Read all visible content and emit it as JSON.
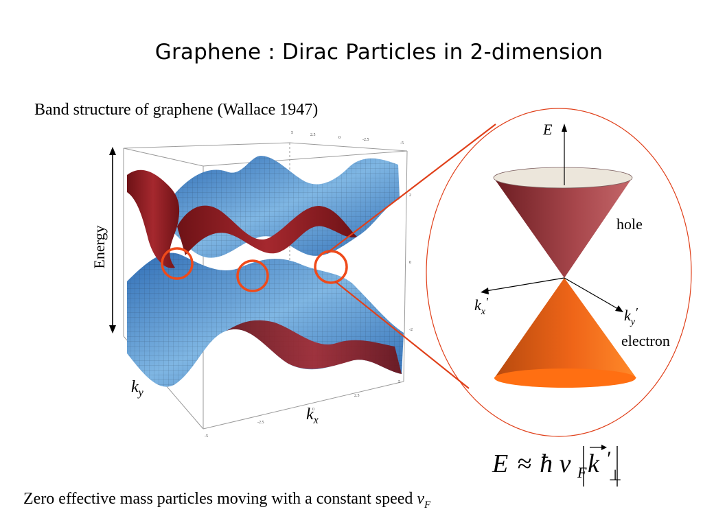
{
  "title": "Graphene : Dirac Particles in 2-dimension",
  "subtitle": "Band structure of graphene (Wallace 1947)",
  "plot": {
    "energy_label": "Energy",
    "ky_label": "k",
    "ky_sub": "y",
    "kx_label": "k",
    "kx_sub": "x",
    "top_ticks": [
      "5",
      "2.5",
      "0",
      "-2.5",
      "-5"
    ],
    "right_ticks": [
      "2",
      "0",
      "-2"
    ],
    "bottom_ticks": [
      "-5",
      "-2.5",
      "0",
      "2.5",
      "5"
    ],
    "highlight_color": "#ef4a1a",
    "upper_band_color": "#8b1a1f",
    "lower_band_color": "#4a8fd0"
  },
  "cone": {
    "axis_e": "E",
    "hole_label": "hole",
    "electron_label": "electron",
    "kx_label": "k",
    "kx_sub": "x",
    "kx_prime": "′",
    "ky_label": "k",
    "ky_sub": "y",
    "ky_prime": "′",
    "hole_color": "#9b3a3f",
    "electron_color": "#f06a1a",
    "ellipse_color": "#e0401a"
  },
  "equation": {
    "E": "E",
    "approx": "≈",
    "hbar": "ħ",
    "v": "v",
    "F": "F",
    "k": "k",
    "kprime": "′",
    "perp": "⊥"
  },
  "footer": {
    "text": "Zero effective mass particles moving with a constant speed ",
    "v": "v",
    "F": "F"
  }
}
